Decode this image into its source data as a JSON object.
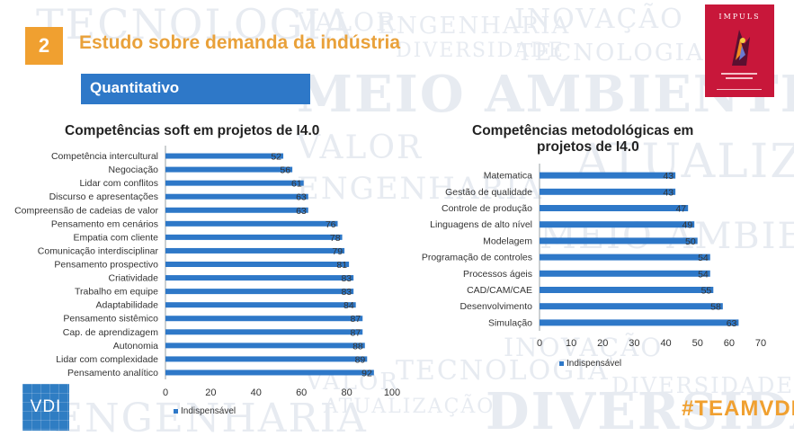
{
  "slide": {
    "number": "2",
    "title": "Estudo sobre demanda da indústria",
    "subtitle": "Quantitativo",
    "hashtag": "#TEAMVDI",
    "logo_text": "VDI",
    "cover_title": "IMPULS",
    "colors": {
      "accent": "#f0a030",
      "blue": "#2e78c8",
      "bar": "#2e78c8",
      "cover": "#c8173a"
    }
  },
  "background_words": [
    "TECNOLOGIA",
    "VALOR",
    "ENGENHARIA",
    "INOVAÇÃO",
    "MEIO AMBIENTE",
    "DIVERSIDADE",
    "ATUALIZAÇÃO"
  ],
  "chart_data": [
    {
      "type": "bar",
      "orientation": "horizontal",
      "title": "Competências soft em projetos de I4.0",
      "categories": [
        "Competência intercultural",
        "Negociação",
        "Lidar com conflitos",
        "Discurso e apresentações",
        "Compreensão de cadeias de valor",
        "Pensamento em cenários",
        "Empatia com cliente",
        "Comunicação interdisciplinar",
        "Pensamento prospectivo",
        "Criatividade",
        "Trabalho em equipe",
        "Adaptabilidade",
        "Pensamento sistêmico",
        "Cap. de aprendizagem",
        "Autonomia",
        "Lidar com complexidade",
        "Pensamento analítico"
      ],
      "series": [
        {
          "name": "Indispensável",
          "values": [
            52,
            56,
            61,
            63,
            63,
            76,
            78,
            79,
            81,
            83,
            83,
            84,
            87,
            87,
            88,
            89,
            92
          ]
        }
      ],
      "xlim": [
        0,
        100
      ],
      "ticks": [
        0,
        20,
        40,
        60,
        80,
        100
      ],
      "legend": "bottom",
      "grid": false
    },
    {
      "type": "bar",
      "orientation": "horizontal",
      "title": "Competências metodológicas em projetos de I4.0",
      "title_lines": [
        "Competências metodológicas em",
        "projetos de I4.0"
      ],
      "categories": [
        "Matematica",
        "Gestão de qualidade",
        "Controle de produção",
        "Linguagens de alto nível",
        "Modelagem",
        "Programação de controles",
        "Processos ágeis",
        "CAD/CAM/CAE",
        "Desenvolvimento",
        "Simulação"
      ],
      "series": [
        {
          "name": "Indispensável",
          "values": [
            43,
            43,
            47,
            49,
            50,
            54,
            54,
            55,
            58,
            63
          ]
        }
      ],
      "xlim": [
        0,
        70
      ],
      "ticks": [
        0,
        10,
        20,
        30,
        40,
        50,
        60,
        70
      ],
      "legend": "bottom",
      "grid": false
    }
  ]
}
